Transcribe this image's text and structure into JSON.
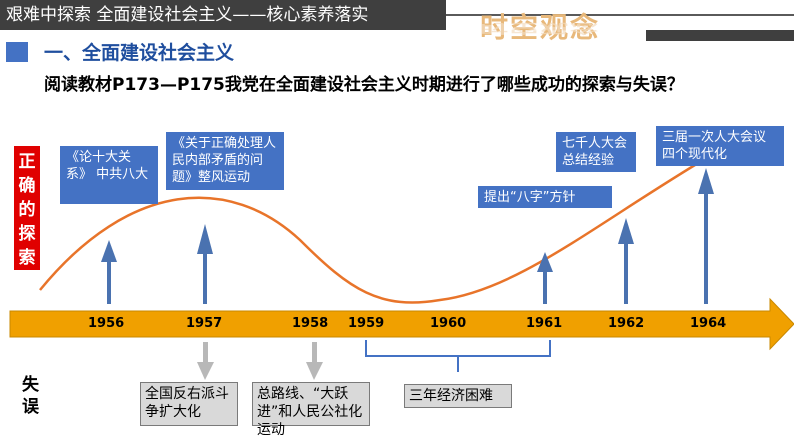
{
  "header": {
    "title": "艰难中探索  全面建设社会主义——核心素养落实",
    "watermark": "时空观念"
  },
  "section": {
    "title": "一、全面建设社会主义"
  },
  "question": "阅读教材P173—P175我党在全面建设社会主义时期进行了哪些成功的探索与失误？",
  "side_labels": {
    "correct": "正确的探索",
    "mistakes": "失误"
  },
  "timeline": {
    "years": [
      "1956",
      "1957",
      "1958",
      "1959",
      "1960",
      "1961",
      "1962",
      "1964"
    ]
  },
  "explorations": [
    {
      "text": "《论十大关系》    中共八大"
    },
    {
      "text": "《关于正确处理人民内部矛盾的问题》整风运动"
    },
    {
      "text": "提出“八字”方针"
    },
    {
      "text": "七千人大会总结经验"
    },
    {
      "text": "三届一次人大会议四个现代化"
    }
  ],
  "mistakes": [
    {
      "text": "全国反右派斗争扩大化"
    },
    {
      "text": "总路线、“大跃进”和人民公社化运动"
    },
    {
      "text": "三年经济困难"
    }
  ],
  "colors": {
    "arrow": "#f0a000",
    "curve": "#e8742a",
    "blue_box": "#4472c4",
    "red_label": "#e00000",
    "topbar": "#3f3f3f"
  }
}
